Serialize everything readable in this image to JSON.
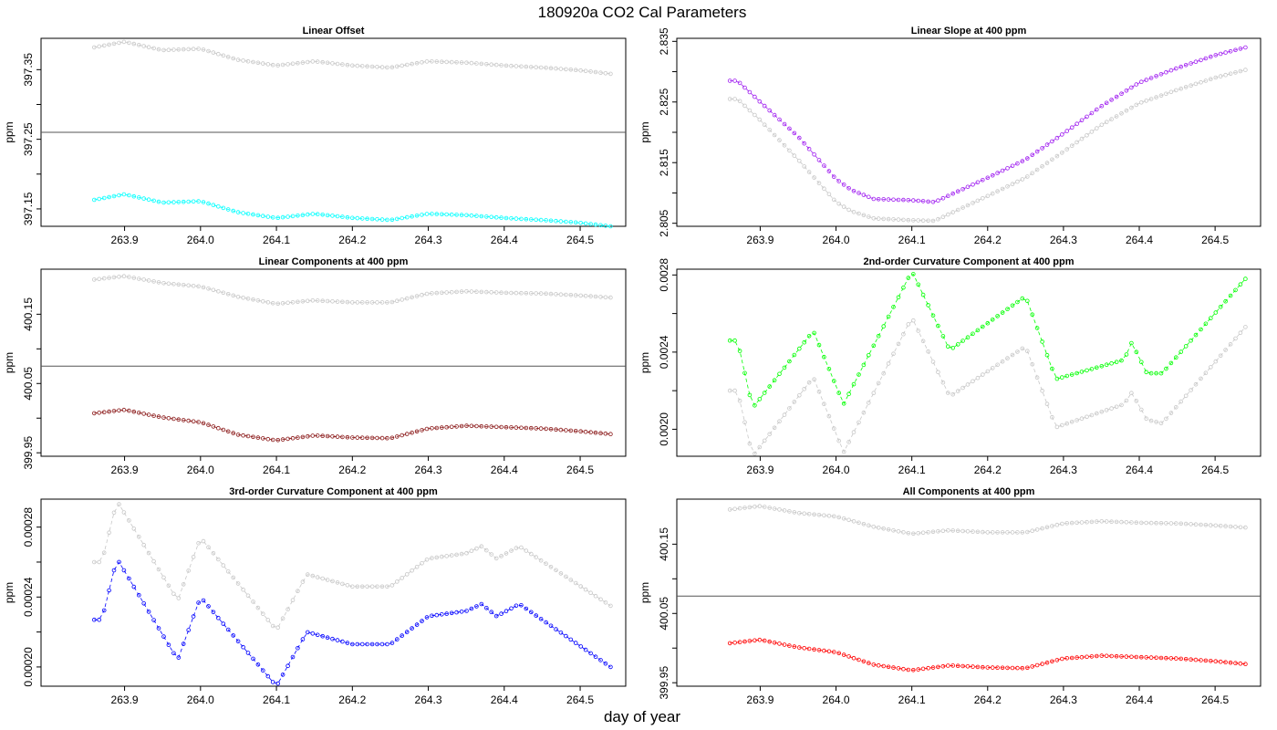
{
  "title": "180920a   CO2 Cal Parameters",
  "xlabel": "day of year",
  "colors": {
    "reference": "#c8c8c8",
    "axis": "#000000",
    "hline": "#555555"
  },
  "chart_data": [
    {
      "type": "scatter",
      "title": "Linear Offset",
      "ylabel": "ppm",
      "xlim": [
        263.79,
        264.56
      ],
      "ylim": [
        397.125,
        397.395
      ],
      "xticks": [
        "263.9",
        "264.0",
        "264.1",
        "264.2",
        "264.3",
        "264.4",
        "264.5"
      ],
      "yticks": [
        "397.15",
        "397.25",
        "397.35"
      ],
      "yminor": [
        397.2,
        397.3
      ],
      "hline": 397.26,
      "series": [
        {
          "color": "#c8c8c8",
          "x": [
            263.86,
            263.9,
            263.95,
            264.0,
            264.05,
            264.1,
            264.15,
            264.2,
            264.25,
            264.3,
            264.35,
            264.4,
            264.45,
            264.5,
            264.54
          ],
          "y": [
            397.382,
            397.39,
            397.378,
            397.38,
            397.364,
            397.356,
            397.362,
            397.356,
            397.353,
            397.362,
            397.36,
            397.356,
            397.353,
            397.349,
            397.344
          ]
        },
        {
          "color": "#00ffff",
          "x": [
            263.86,
            263.9,
            263.95,
            264.0,
            264.05,
            264.1,
            264.15,
            264.2,
            264.25,
            264.3,
            264.35,
            264.4,
            264.45,
            264.5,
            264.54
          ],
          "y": [
            397.163,
            397.171,
            397.159,
            397.161,
            397.145,
            397.137,
            397.143,
            397.137,
            397.134,
            397.143,
            397.141,
            397.137,
            397.134,
            397.13,
            397.125
          ]
        }
      ]
    },
    {
      "type": "scatter",
      "title": "Linear Slope at 400 ppm",
      "ylabel": "ppm",
      "xlim": [
        263.79,
        264.56
      ],
      "ylim": [
        2.8045,
        2.8355
      ],
      "xticks": [
        "263.9",
        "264.0",
        "264.1",
        "264.2",
        "264.3",
        "264.4",
        "264.5"
      ],
      "yticks": [
        "2.805",
        "2.815",
        "2.825",
        "2.835"
      ],
      "yminor": [
        2.81,
        2.82,
        2.83
      ],
      "series": [
        {
          "color": "#c8c8c8",
          "x": [
            263.86,
            263.87,
            263.9,
            263.95,
            264.0,
            264.02,
            264.05,
            264.1,
            264.13,
            264.2,
            264.25,
            264.3,
            264.35,
            264.4,
            264.45,
            264.5,
            264.54
          ],
          "y": [
            2.8255,
            2.8255,
            2.822,
            2.8155,
            2.8085,
            2.807,
            2.8058,
            2.8055,
            2.8054,
            2.8095,
            2.8125,
            2.8168,
            2.8212,
            2.8248,
            2.827,
            2.829,
            2.8303
          ]
        },
        {
          "color": "#a020f0",
          "x": [
            263.86,
            263.87,
            263.9,
            263.95,
            264.0,
            264.02,
            264.05,
            264.1,
            264.13,
            264.2,
            264.25,
            264.3,
            264.35,
            264.4,
            264.45,
            264.5,
            264.54
          ],
          "y": [
            2.8285,
            2.8285,
            2.825,
            2.8193,
            2.8123,
            2.8105,
            2.809,
            2.8088,
            2.8085,
            2.8125,
            2.8155,
            2.8198,
            2.8243,
            2.8282,
            2.8306,
            2.8327,
            2.834
          ]
        }
      ]
    },
    {
      "type": "scatter",
      "title": "Linear Components at 400 ppm",
      "ylabel": "ppm",
      "xlim": [
        263.79,
        264.56
      ],
      "ylim": [
        399.945,
        400.215
      ],
      "xticks": [
        "263.9",
        "264.0",
        "264.1",
        "264.2",
        "264.3",
        "264.4",
        "264.5"
      ],
      "yticks": [
        "399.95",
        "400.05",
        "400.15"
      ],
      "yminor": [
        400.0,
        400.1
      ],
      "hline": 400.075,
      "series": [
        {
          "color": "#c8c8c8",
          "x": [
            263.86,
            263.9,
            263.95,
            264.0,
            264.05,
            264.1,
            264.15,
            264.2,
            264.25,
            264.3,
            264.35,
            264.4,
            264.45,
            264.5,
            264.54
          ],
          "y": [
            400.2,
            400.205,
            400.195,
            400.19,
            400.175,
            400.165,
            400.17,
            400.167,
            400.167,
            400.18,
            400.183,
            400.181,
            400.18,
            400.177,
            400.174
          ]
        },
        {
          "color": "#8b1a1a",
          "x": [
            263.86,
            263.9,
            263.95,
            264.0,
            264.05,
            264.1,
            264.15,
            264.2,
            264.25,
            264.3,
            264.35,
            264.4,
            264.45,
            264.5,
            264.54
          ],
          "y": [
            400.007,
            400.012,
            400.001,
            399.994,
            399.976,
            399.968,
            399.975,
            399.972,
            399.971,
            399.985,
            399.989,
            399.987,
            399.985,
            399.981,
            399.977
          ]
        }
      ]
    },
    {
      "type": "scatter",
      "title": "2nd-order Curvature Component at 400 ppm",
      "ylabel": "ppm",
      "xlim": [
        263.79,
        264.56
      ],
      "ylim": [
        0.00186,
        0.00283
      ],
      "xticks": [
        "263.9",
        "264.0",
        "264.1",
        "264.2",
        "264.3",
        "264.4",
        "264.5"
      ],
      "yticks": [
        "0.0020",
        "0.0024",
        "0.0028"
      ],
      "yminor": [
        0.0022,
        0.0026
      ],
      "series": [
        {
          "color": "#c8c8c8",
          "x": [
            263.86,
            263.87,
            263.89,
            263.97,
            264.01,
            264.1,
            264.15,
            264.25,
            264.29,
            264.38,
            264.39,
            264.41,
            264.43,
            264.54
          ],
          "y": [
            0.0022,
            0.0022,
            0.00186,
            0.00227,
            0.00188,
            0.00258,
            0.00217,
            0.00243,
            0.00201,
            0.00213,
            0.00219,
            0.00205,
            0.00203,
            0.00253
          ]
        },
        {
          "color": "#00ff00",
          "x": [
            263.86,
            263.87,
            263.89,
            263.97,
            264.01,
            264.1,
            264.15,
            264.25,
            264.29,
            264.38,
            264.39,
            264.41,
            264.43,
            264.54
          ],
          "y": [
            0.00246,
            0.00246,
            0.00211,
            0.00251,
            0.00213,
            0.00282,
            0.00241,
            0.00269,
            0.00226,
            0.00236,
            0.00245,
            0.00229,
            0.00229,
            0.00278
          ]
        }
      ]
    },
    {
      "type": "scatter",
      "title": "3rd-order Curvature Component at 400 ppm",
      "ylabel": "ppm",
      "xlim": [
        263.79,
        264.56
      ],
      "ylim": [
        0.000189,
        0.000296
      ],
      "xticks": [
        "263.9",
        "264.0",
        "264.1",
        "264.2",
        "264.3",
        "264.4",
        "264.5"
      ],
      "yticks": [
        "0.00020",
        "0.00024",
        "0.00028"
      ],
      "yminor": [
        0.00022,
        0.00026
      ],
      "series": [
        {
          "color": "#c8c8c8",
          "x": [
            263.86,
            263.87,
            263.89,
            263.97,
            264.0,
            264.1,
            264.14,
            264.2,
            264.25,
            264.3,
            264.35,
            264.37,
            264.39,
            264.42,
            264.54
          ],
          "y": [
            0.00026,
            0.00026,
            0.000295,
            0.000238,
            0.000274,
            0.000221,
            0.000253,
            0.000246,
            0.000246,
            0.000262,
            0.000265,
            0.000269,
            0.000262,
            0.000269,
            0.000235
          ]
        },
        {
          "color": "#0000ff",
          "x": [
            263.86,
            263.87,
            263.89,
            263.97,
            264.0,
            264.1,
            264.14,
            264.2,
            264.25,
            264.3,
            264.35,
            264.37,
            264.39,
            264.42,
            264.54
          ],
          "y": [
            0.000227,
            0.000227,
            0.000262,
            0.000204,
            0.00024,
            0.000189,
            0.00022,
            0.000213,
            0.000213,
            0.000229,
            0.000232,
            0.000236,
            0.000229,
            0.000236,
            0.0002
          ]
        }
      ]
    },
    {
      "type": "scatter",
      "title": "All Components at 400 ppm",
      "ylabel": "ppm",
      "xlim": [
        263.79,
        264.56
      ],
      "ylim": [
        399.945,
        400.215
      ],
      "xticks": [
        "263.9",
        "264.0",
        "264.1",
        "264.2",
        "264.3",
        "264.4",
        "264.5"
      ],
      "yticks": [
        "399.95",
        "400.05",
        "400.15"
      ],
      "yminor": [
        400.0,
        400.1
      ],
      "hline": 400.075,
      "series": [
        {
          "color": "#c8c8c8",
          "x": [
            263.86,
            263.9,
            263.95,
            264.0,
            264.05,
            264.1,
            264.15,
            264.2,
            264.25,
            264.3,
            264.35,
            264.4,
            264.45,
            264.5,
            264.54
          ],
          "y": [
            400.2,
            400.205,
            400.195,
            400.19,
            400.175,
            400.165,
            400.17,
            400.167,
            400.167,
            400.18,
            400.183,
            400.181,
            400.18,
            400.177,
            400.174
          ]
        },
        {
          "color": "#ff0000",
          "x": [
            263.86,
            263.9,
            263.95,
            264.0,
            264.05,
            264.1,
            264.15,
            264.2,
            264.25,
            264.3,
            264.35,
            264.4,
            264.45,
            264.5,
            264.54
          ],
          "y": [
            400.007,
            400.012,
            400.001,
            399.994,
            399.976,
            399.968,
            399.975,
            399.972,
            399.971,
            399.985,
            399.989,
            399.987,
            399.985,
            399.981,
            399.977
          ]
        }
      ]
    }
  ]
}
